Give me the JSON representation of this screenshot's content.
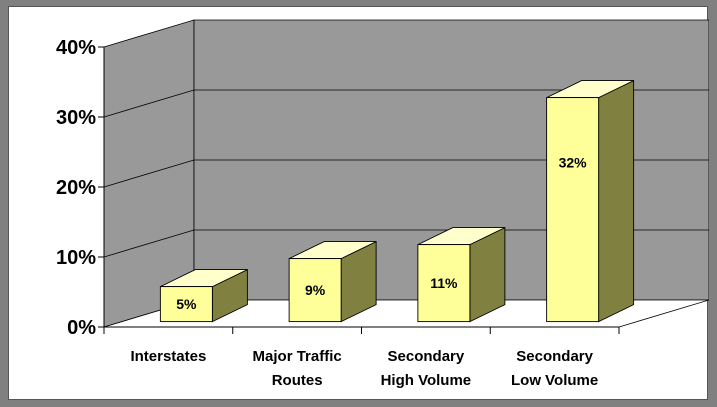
{
  "chart_data": {
    "type": "bar",
    "style": "3d-column",
    "categories": [
      [
        "Interstates"
      ],
      [
        "Major Traffic",
        "Routes"
      ],
      [
        "Secondary",
        "High Volume"
      ],
      [
        "Secondary",
        "Low Volume"
      ]
    ],
    "values": [
      5,
      9,
      11,
      32
    ],
    "data_labels": [
      "5%",
      "9%",
      "11%",
      "32%"
    ],
    "yticks": [
      0,
      10,
      20,
      30,
      40
    ],
    "ytick_labels": [
      "0%",
      "10%",
      "20%",
      "30%",
      "40%"
    ],
    "ylim": [
      0,
      40
    ],
    "grid": true,
    "legend": "none",
    "colors": {
      "bar_front": "#ffff99",
      "bar_top": "#ffffcc",
      "bar_side": "#808040",
      "back_wall": "#999999",
      "side_wall": "#999999",
      "floor": "#ffffff",
      "outer_frame": "#808080"
    }
  }
}
